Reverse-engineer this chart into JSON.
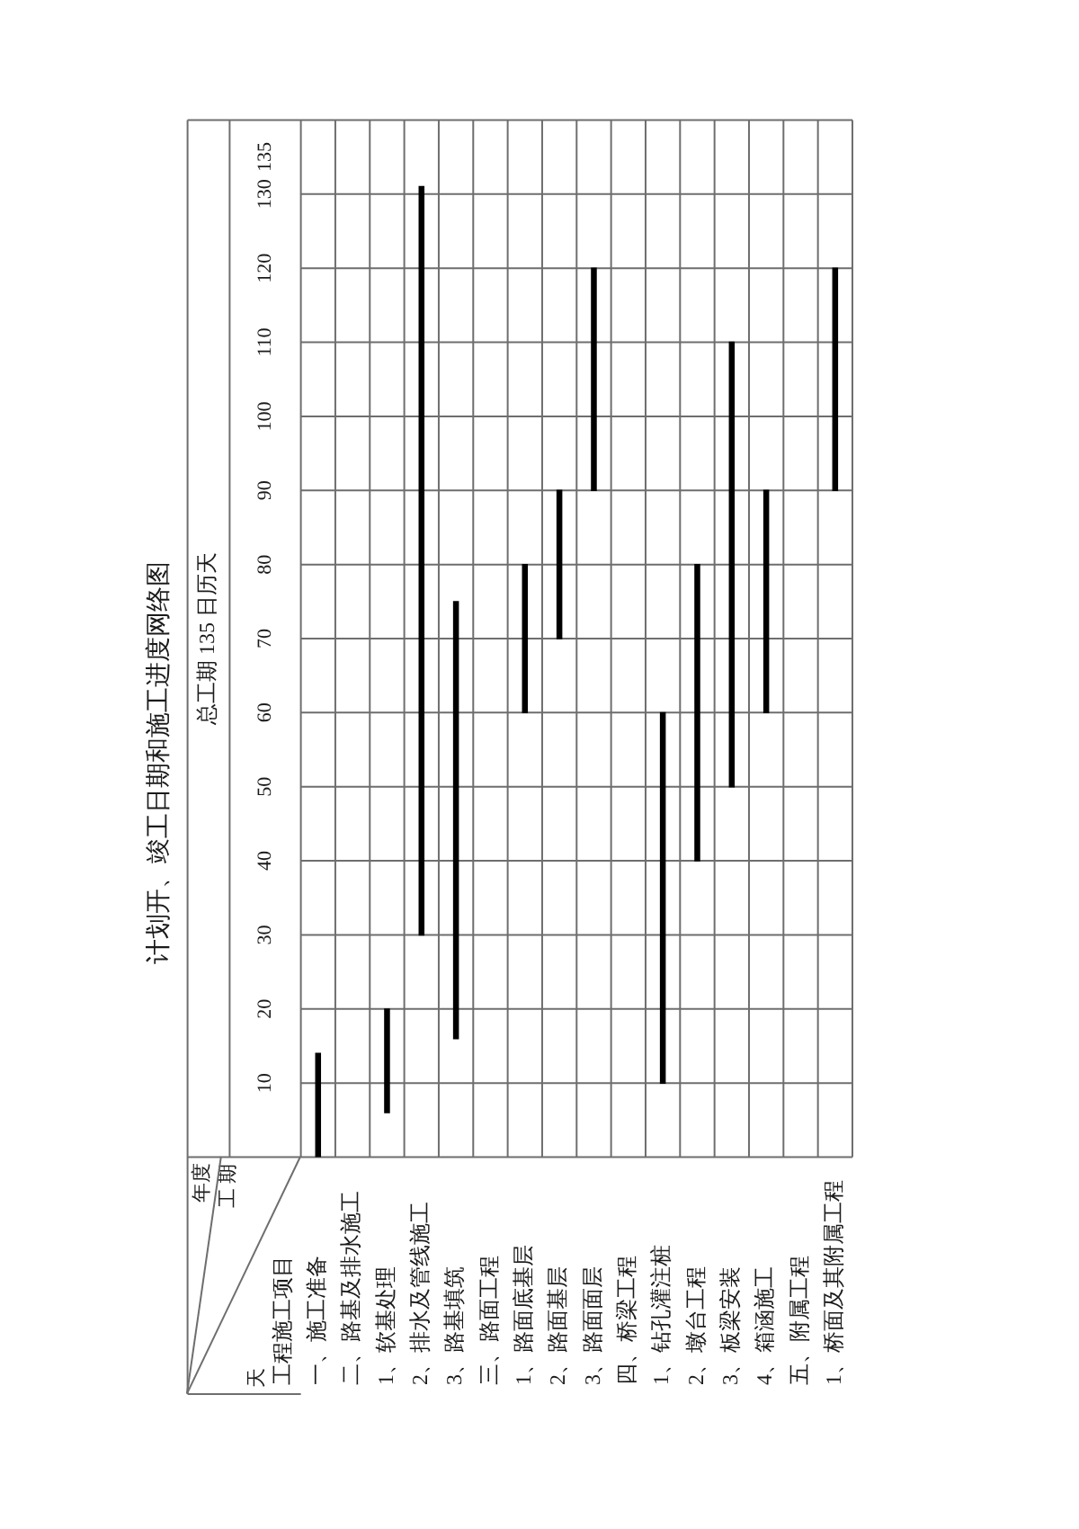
{
  "chart_data": {
    "type": "bar",
    "title": "计划开、竣工日期和施工进度网络图",
    "subtitle": "总工期 135 日历天",
    "ylabel": "工 期",
    "annotations": [
      "年度",
      "天",
      "工程施工项目"
    ],
    "categories": [
      "一、施工准备",
      "二、路基及排水施工",
      "1、软基处理",
      "2、排水及管线施工",
      "3、路基填筑",
      "三、路面工程",
      "1、路面底基层",
      "2、路面基层",
      "3、路面面层",
      "四、桥梁工程",
      "1、钻孔灌注桩",
      "2、墩台工程",
      "3、板梁安装",
      "4、箱涵施工",
      "五、附属工程",
      "1、桥面及其附属工程"
    ],
    "base": [
      0,
      null,
      6,
      30,
      16,
      null,
      60,
      70,
      90,
      null,
      10,
      40,
      50,
      60,
      null,
      90
    ],
    "values": [
      14,
      null,
      14,
      101,
      59,
      null,
      20,
      20,
      30,
      null,
      50,
      40,
      60,
      30,
      null,
      30
    ],
    "color": "#000000",
    "ylim": [
      0,
      140
    ],
    "yticks": [
      10,
      20,
      30,
      40,
      50,
      60,
      70,
      80,
      90,
      100,
      110,
      120,
      130,
      135
    ],
    "grid": true
  }
}
